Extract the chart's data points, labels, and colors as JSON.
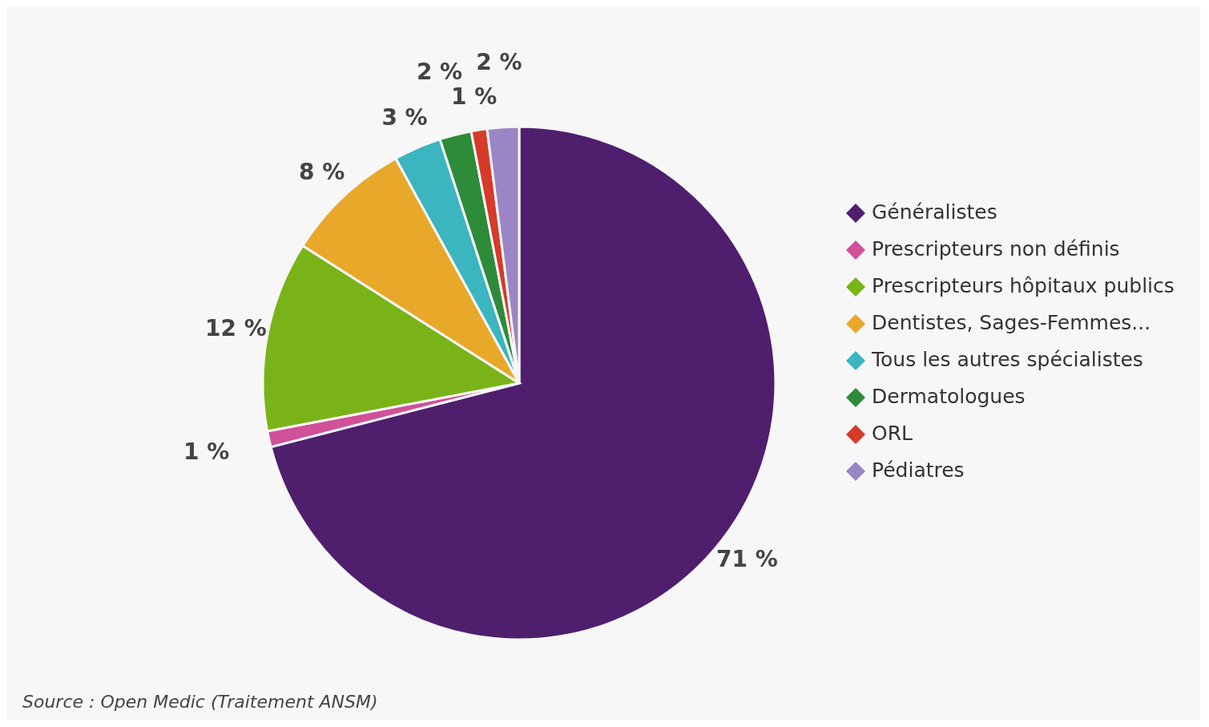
{
  "chart_data": {
    "type": "pie",
    "categories": [
      "Généralistes",
      "Prescripteurs non définis",
      "Prescripteurs hôpitaux publics",
      "Dentistes, Sages-Femmes...",
      "Tous les autres spécialistes",
      "Dermatologues",
      "ORL",
      "Pédiatres"
    ],
    "values": [
      71,
      1,
      12,
      8,
      3,
      2,
      1,
      2
    ],
    "value_labels": [
      "71 %",
      "1 %",
      "12 %",
      "8 %",
      "3 %",
      "2 %",
      "1 %",
      "2 %"
    ],
    "colors": [
      "#4f1f6e",
      "#d0509a",
      "#7ab317",
      "#e8a82a",
      "#3bb5c0",
      "#2e8b3a",
      "#d63a2a",
      "#9a86c4"
    ],
    "legend": "right",
    "annotations": [
      "Source : Open Medic (Traitement ANSM)"
    ]
  }
}
